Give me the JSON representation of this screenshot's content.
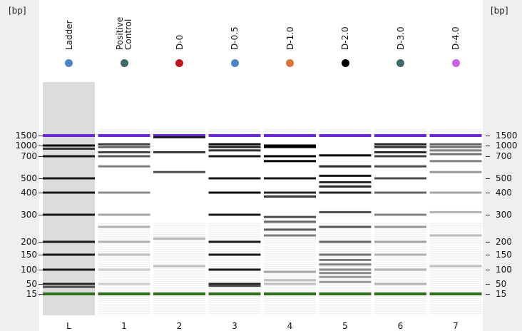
{
  "unit_label": "[bp]",
  "bp_markers": [
    1500,
    1000,
    700,
    500,
    400,
    300,
    200,
    150,
    100,
    50,
    15
  ],
  "colors": {
    "upper_marker": "#6a2bd6",
    "lower_marker": "#2e6e1c"
  },
  "lanes": [
    {
      "title": [
        "Ladder"
      ],
      "number": "L",
      "dot_color": "#4a86c5",
      "bands": [
        {
          "bp": 1500,
          "i": 1
        },
        {
          "bp": 1000,
          "i": 0.95
        },
        {
          "bp": 900,
          "i": 0.8
        },
        {
          "bp": 700,
          "i": 0.9
        },
        {
          "bp": 500,
          "i": 0.9
        },
        {
          "bp": 400,
          "i": 0.9
        },
        {
          "bp": 300,
          "i": 0.9
        },
        {
          "bp": 200,
          "i": 0.9
        },
        {
          "bp": 150,
          "i": 0.9
        },
        {
          "bp": 100,
          "i": 0.9
        },
        {
          "bp": 50,
          "i": 0.85
        },
        {
          "bp": 35,
          "i": 0.7
        },
        {
          "bp": 15,
          "i": 1
        }
      ]
    },
    {
      "title": [
        "Positive",
        "Control"
      ],
      "number": "1",
      "dot_color": "#3e6b6c",
      "bands": [
        {
          "bp": 1500,
          "i": 1
        },
        {
          "bp": 1050,
          "i": 0.75
        },
        {
          "bp": 950,
          "i": 0.6
        },
        {
          "bp": 800,
          "i": 0.75
        },
        {
          "bp": 700,
          "i": 0.65
        },
        {
          "bp": 600,
          "i": 0.5
        },
        {
          "bp": 400,
          "i": 0.45
        },
        {
          "bp": 300,
          "i": 0.35
        },
        {
          "bp": 250,
          "i": 0.3
        },
        {
          "bp": 200,
          "i": 0.3
        },
        {
          "bp": 150,
          "i": 0.25
        },
        {
          "bp": 100,
          "i": 0.2
        },
        {
          "bp": 50,
          "i": 0.2
        },
        {
          "bp": 15,
          "i": 1
        }
      ]
    },
    {
      "title": [
        "D-0"
      ],
      "number": "2",
      "dot_color": "#c1161c",
      "bands": [
        {
          "bp": 1500,
          "i": 1
        },
        {
          "bp": 1400,
          "i": 0.9
        },
        {
          "bp": 800,
          "i": 0.8
        },
        {
          "bp": 550,
          "i": 0.7
        },
        {
          "bp": 210,
          "i": 0.3
        },
        {
          "bp": 110,
          "i": 0.25
        },
        {
          "bp": 15,
          "i": 1
        }
      ]
    },
    {
      "title": [
        "D-0.5"
      ],
      "number": "3",
      "dot_color": "#4a86c5",
      "bands": [
        {
          "bp": 1500,
          "i": 1
        },
        {
          "bp": 1050,
          "i": 0.95
        },
        {
          "bp": 950,
          "i": 0.85
        },
        {
          "bp": 850,
          "i": 0.8
        },
        {
          "bp": 700,
          "i": 0.9
        },
        {
          "bp": 500,
          "i": 0.9
        },
        {
          "bp": 400,
          "i": 0.95
        },
        {
          "bp": 300,
          "i": 0.9
        },
        {
          "bp": 200,
          "i": 0.9
        },
        {
          "bp": 150,
          "i": 0.9
        },
        {
          "bp": 100,
          "i": 0.9
        },
        {
          "bp": 50,
          "i": 0.85
        },
        {
          "bp": 40,
          "i": 0.7
        },
        {
          "bp": 15,
          "i": 1
        }
      ]
    },
    {
      "title": [
        "D-1.0"
      ],
      "number": "4",
      "dot_color": "#d9743a",
      "bands": [
        {
          "bp": 1500,
          "i": 1
        },
        {
          "bp": 1000,
          "i": 1
        },
        {
          "bp": 950,
          "i": 1
        },
        {
          "bp": 700,
          "i": 1
        },
        {
          "bp": 650,
          "i": 1
        },
        {
          "bp": 500,
          "i": 0.9
        },
        {
          "bp": 400,
          "i": 0.85
        },
        {
          "bp": 380,
          "i": 0.8
        },
        {
          "bp": 290,
          "i": 0.7
        },
        {
          "bp": 270,
          "i": 0.6
        },
        {
          "bp": 240,
          "i": 0.65
        },
        {
          "bp": 220,
          "i": 0.5
        },
        {
          "bp": 90,
          "i": 0.35
        },
        {
          "bp": 60,
          "i": 0.25
        },
        {
          "bp": 50,
          "i": 0.25
        },
        {
          "bp": 15,
          "i": 1
        }
      ]
    },
    {
      "title": [
        "D-2.0"
      ],
      "number": "5",
      "dot_color": "#000000",
      "bands": [
        {
          "bp": 1500,
          "i": 1
        },
        {
          "bp": 720,
          "i": 1
        },
        {
          "bp": 600,
          "i": 0.85
        },
        {
          "bp": 520,
          "i": 0.9
        },
        {
          "bp": 470,
          "i": 0.85
        },
        {
          "bp": 440,
          "i": 0.85
        },
        {
          "bp": 400,
          "i": 0.85
        },
        {
          "bp": 310,
          "i": 0.7
        },
        {
          "bp": 250,
          "i": 0.65
        },
        {
          "bp": 200,
          "i": 0.6
        },
        {
          "bp": 150,
          "i": 0.55
        },
        {
          "bp": 130,
          "i": 0.5
        },
        {
          "bp": 115,
          "i": 0.5
        },
        {
          "bp": 100,
          "i": 0.45
        },
        {
          "bp": 85,
          "i": 0.45
        },
        {
          "bp": 70,
          "i": 0.4
        },
        {
          "bp": 55,
          "i": 0.4
        },
        {
          "bp": 15,
          "i": 1
        }
      ]
    },
    {
      "title": [
        "D-3.0"
      ],
      "number": "6",
      "dot_color": "#3e6b6c",
      "bands": [
        {
          "bp": 1500,
          "i": 1
        },
        {
          "bp": 1050,
          "i": 0.85
        },
        {
          "bp": 950,
          "i": 0.8
        },
        {
          "bp": 800,
          "i": 0.85
        },
        {
          "bp": 700,
          "i": 0.75
        },
        {
          "bp": 600,
          "i": 0.7
        },
        {
          "bp": 500,
          "i": 0.7
        },
        {
          "bp": 400,
          "i": 0.6
        },
        {
          "bp": 300,
          "i": 0.5
        },
        {
          "bp": 250,
          "i": 0.4
        },
        {
          "bp": 200,
          "i": 0.35
        },
        {
          "bp": 150,
          "i": 0.3
        },
        {
          "bp": 100,
          "i": 0.3
        },
        {
          "bp": 50,
          "i": 0.3
        },
        {
          "bp": 15,
          "i": 1
        }
      ]
    },
    {
      "title": [
        "D-4.0"
      ],
      "number": "7",
      "dot_color": "#c95fe3",
      "bands": [
        {
          "bp": 1500,
          "i": 1
        },
        {
          "bp": 1050,
          "i": 0.6
        },
        {
          "bp": 950,
          "i": 0.55
        },
        {
          "bp": 850,
          "i": 0.5
        },
        {
          "bp": 750,
          "i": 0.55
        },
        {
          "bp": 650,
          "i": 0.5
        },
        {
          "bp": 550,
          "i": 0.4
        },
        {
          "bp": 400,
          "i": 0.35
        },
        {
          "bp": 310,
          "i": 0.3
        },
        {
          "bp": 220,
          "i": 0.25
        },
        {
          "bp": 110,
          "i": 0.25
        },
        {
          "bp": 15,
          "i": 1
        }
      ]
    }
  ]
}
